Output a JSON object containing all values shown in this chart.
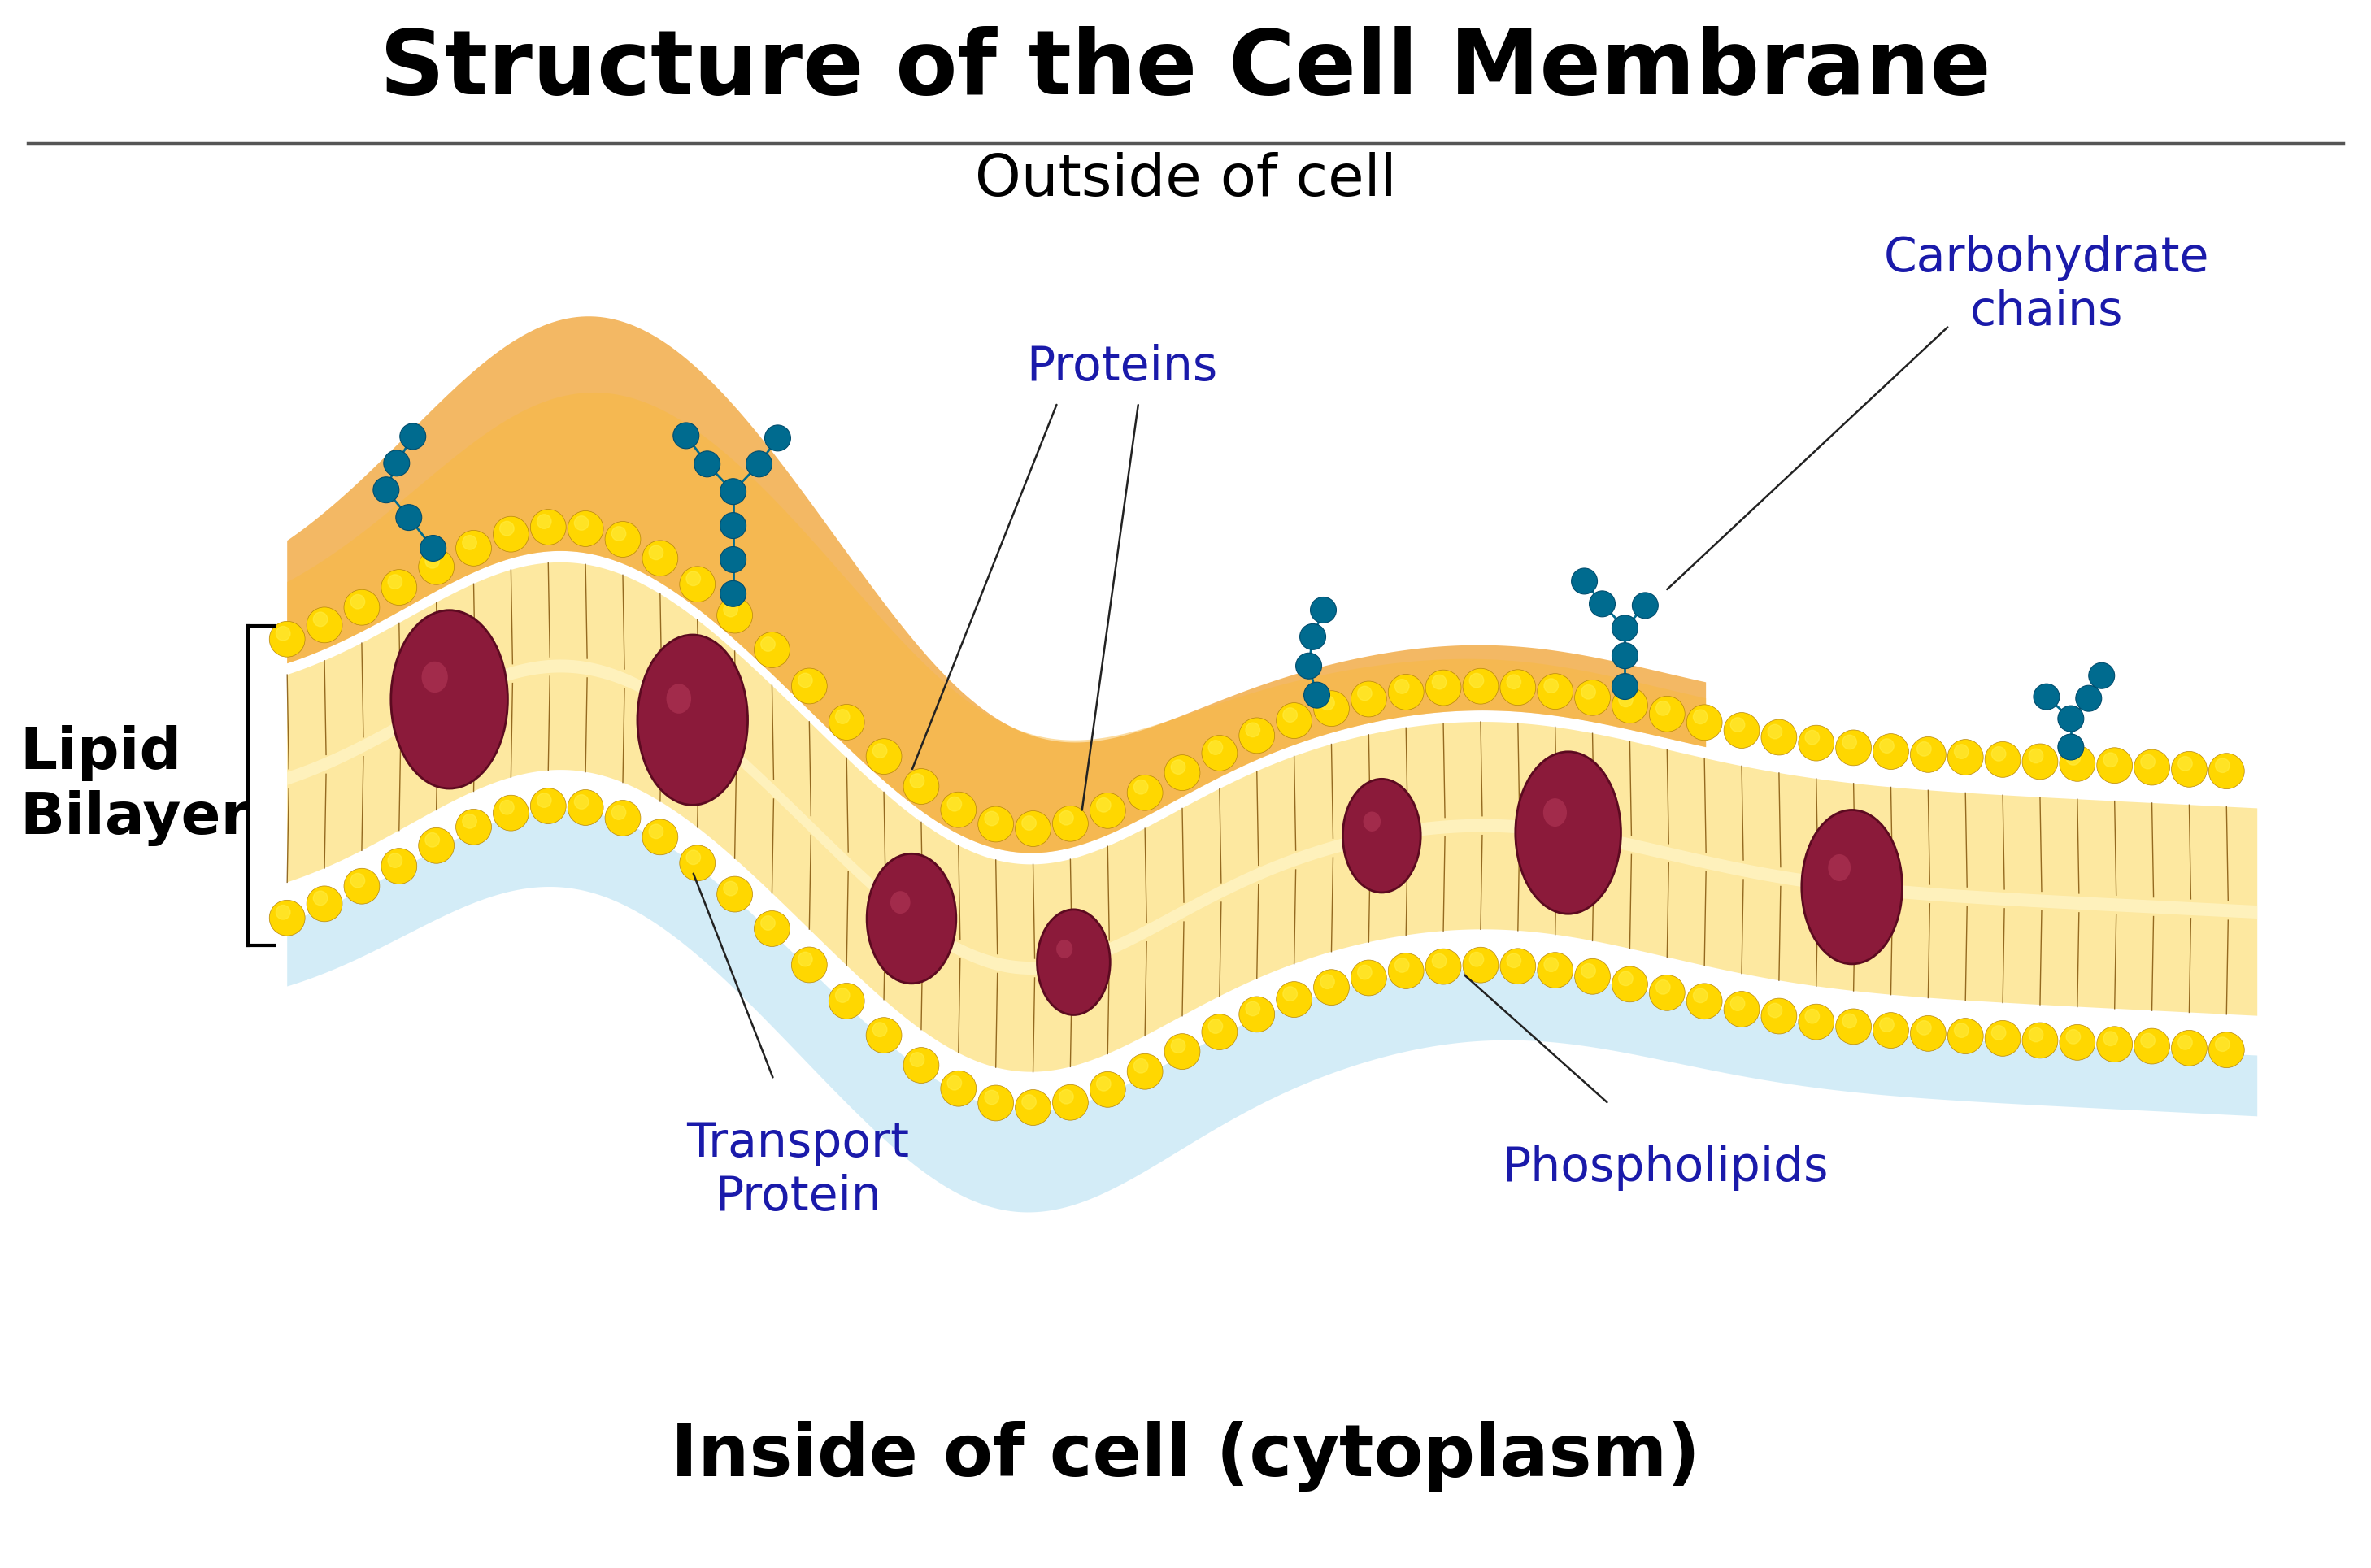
{
  "title": "Structure of the Cell Membrane",
  "outside_label": "Outside of cell",
  "inside_label": "Inside of cell (cytoplasm)",
  "lipid_bilayer_label": "Lipid\nBilayer",
  "proteins_label": "Proteins",
  "transport_protein_label": "Transport\nProtein",
  "phospholipids_label": "Phospholipids",
  "carbohydrate_chains_label": "Carbohydrate\nchains",
  "title_color": "#000000",
  "outside_label_color": "#000000",
  "inside_label_color": "#000000",
  "annotation_color": "#1a1aaa",
  "bg_color": "#ffffff",
  "membrane_amber": "#F5A820",
  "membrane_shadow": "#E8940A",
  "membrane_pale": "#FDE99A",
  "membrane_inner_pale": "#FFF0B0",
  "phospholipid_head_color": "#FFD700",
  "phospholipid_head_edge": "#B8860B",
  "protein_color": "#8B1A3A",
  "protein_edge": "#5C0A20",
  "carbohydrate_color": "#006B8F",
  "carb_edge": "#004D6E",
  "cytoplasm_glow": "#C8E8F5",
  "bracket_color": "#000000",
  "line_color": "#555555"
}
